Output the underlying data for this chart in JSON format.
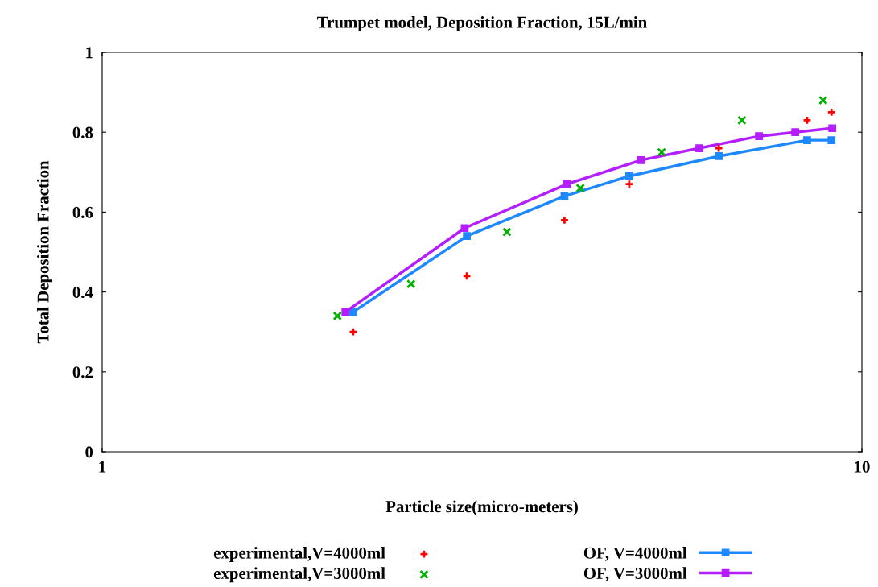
{
  "chart_data": {
    "type": "scatter",
    "title": "Trumpet model, Deposition Fraction, 15L/min",
    "xlabel": "Particle size(micro-meters)",
    "ylabel": "Total Deposition Fraction",
    "log": "x",
    "xlim": [
      1,
      10
    ],
    "xticks": [
      1,
      10
    ],
    "ylim": [
      0,
      1
    ],
    "yticks": [
      0,
      0.2,
      0.4,
      0.6,
      0.8,
      1
    ],
    "grid": false,
    "legend": "bottom",
    "series": [
      {
        "name": "experimental,V=4000ml",
        "marker": "plus",
        "color": "#ff0000",
        "x": [
          2.14,
          3.02,
          4.06,
          4.94,
          6.48,
          8.47,
          9.12
        ],
        "values": [
          0.3,
          0.44,
          0.58,
          0.67,
          0.76,
          0.83,
          0.85
        ]
      },
      {
        "name": "OF, V=4000ml",
        "type": "line",
        "marker": "square",
        "line_style": "solid",
        "color": "#1e88ff",
        "x": [
          2.14,
          3.02,
          4.06,
          4.94,
          6.48,
          8.47,
          9.12
        ],
        "values": [
          0.35,
          0.54,
          0.64,
          0.69,
          0.74,
          0.78,
          0.78
        ]
      },
      {
        "name": "experimental,V=3000ml",
        "marker": "cross",
        "color": "#00b000",
        "x": [
          2.04,
          2.55,
          3.41,
          4.26,
          5.45,
          6.95,
          8.89
        ],
        "values": [
          0.34,
          0.42,
          0.55,
          0.66,
          0.75,
          0.83,
          0.88
        ]
      },
      {
        "name": "OF, V=3000ml",
        "type": "line",
        "marker": "square",
        "line_style": "solid",
        "color": "#b41eff",
        "x": [
          2.09,
          3.0,
          4.09,
          5.12,
          6.11,
          7.32,
          8.17,
          9.14
        ],
        "values": [
          0.35,
          0.56,
          0.67,
          0.73,
          0.76,
          0.79,
          0.8,
          0.81
        ]
      }
    ]
  }
}
